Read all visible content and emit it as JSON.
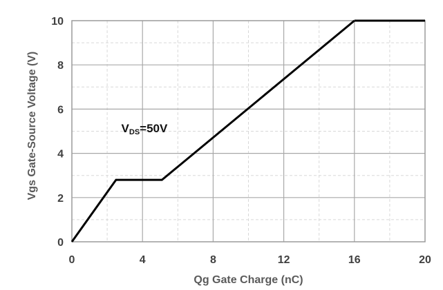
{
  "chart_data": {
    "type": "line",
    "title": "",
    "xlabel": "Qg Gate Charge (nC)",
    "ylabel": "Vgs Gate-Source Voltage (V)",
    "xlim": [
      0,
      20
    ],
    "ylim": [
      0,
      10
    ],
    "xticks": [
      "0",
      "4",
      "8",
      "12",
      "16",
      "20"
    ],
    "yticks": [
      "0",
      "2",
      "4",
      "6",
      "8",
      "10"
    ],
    "grid": true,
    "series": [
      {
        "x": [
          0,
          2.5,
          5.1,
          16
        ],
        "y": [
          0,
          2.8,
          2.8,
          10
        ],
        "color": "#000000"
      }
    ],
    "annotation": {
      "prefix": "V",
      "subscript": "DS",
      "suffix": "=50V",
      "x": 2.8,
      "y": 5.2
    }
  }
}
